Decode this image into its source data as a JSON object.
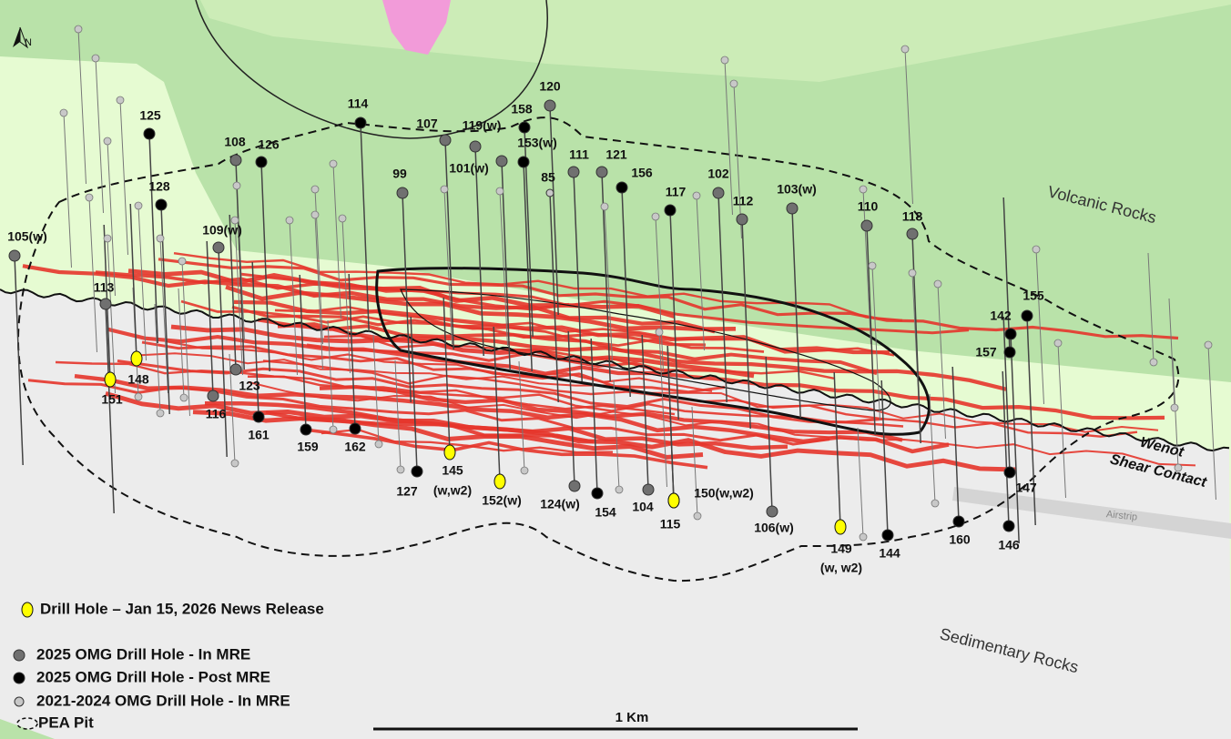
{
  "map": {
    "north": "N",
    "labels": {
      "volcanic": "Volcanic Rocks",
      "sedimentary": "Sedimentary Rocks",
      "contact": [
        "Wenot",
        "Shear Contact"
      ],
      "airstrip": "Airstrip",
      "scale": "1 Km"
    },
    "groups": [
      {
        "legend": "Drill Hole – Jan 15, 2026 News Release",
        "color": "#ffff00",
        "holes": [
          [
            "148"
          ],
          [
            "151"
          ],
          [
            "145",
            "(w,w2)"
          ],
          [
            "152(w)"
          ],
          [
            "115"
          ],
          [
            "150(w,w2)"
          ],
          [
            "149",
            "(w, w2)"
          ]
        ]
      },
      {
        "legend": "2025 OMG Drill Hole - In MRE",
        "color": "#707070",
        "holes": [
          [
            "105(w)"
          ],
          [
            "113"
          ],
          [
            "108"
          ],
          [
            "109(w)"
          ],
          [
            "123"
          ],
          [
            "116"
          ],
          [
            "107"
          ],
          [
            "119(w)"
          ],
          [
            "101(w)"
          ],
          [
            "120"
          ],
          [
            "99"
          ],
          [
            "111"
          ],
          [
            "121"
          ],
          [
            "102"
          ],
          [
            "112"
          ],
          [
            "103(w)"
          ],
          [
            "110"
          ],
          [
            "118"
          ],
          [
            "124(w)"
          ],
          [
            "104"
          ],
          [
            "106(w)"
          ]
        ]
      },
      {
        "legend": "2025 OMG Drill Hole - Post MRE",
        "color": "#000000",
        "holes": [
          [
            "125"
          ],
          [
            "126"
          ],
          [
            "128"
          ],
          [
            "114"
          ],
          [
            "158"
          ],
          [
            "153(w)"
          ],
          [
            "156"
          ],
          [
            "117"
          ],
          [
            "155"
          ],
          [
            "142"
          ],
          [
            "157"
          ],
          [
            "147"
          ],
          [
            "146"
          ],
          [
            "160"
          ],
          [
            "144"
          ],
          [
            "161"
          ],
          [
            "159"
          ],
          [
            "162"
          ],
          [
            "127"
          ],
          [
            "154"
          ]
        ]
      },
      {
        "legend": "2021-2024 OMG Drill Hole - In MRE",
        "color": "#c8c8c8",
        "holes": [
          [
            "85"
          ]
        ]
      }
    ],
    "pea_pit": "PEA Pit"
  }
}
